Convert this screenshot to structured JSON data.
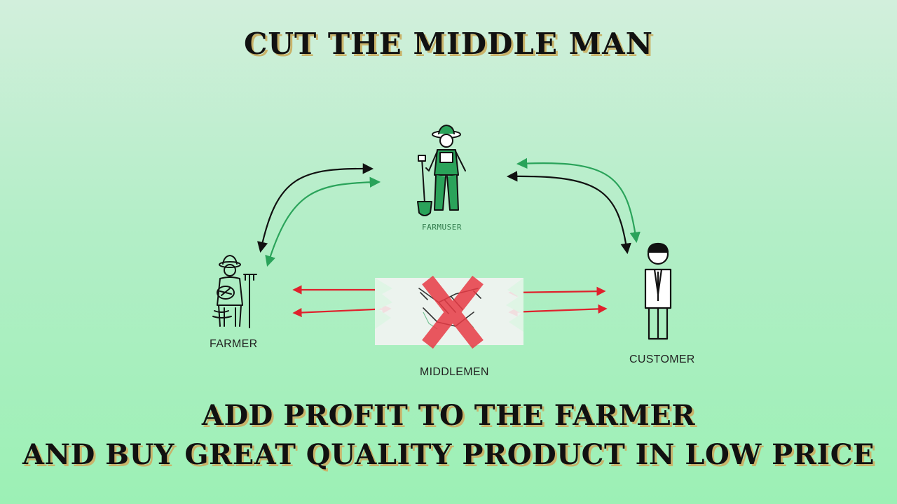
{
  "title": "CUT THE MIDDLE MAN",
  "nodes": {
    "farmuser": "FARMUSER",
    "farmer": "FARMER",
    "middlemen": "MIDDLEMEN",
    "customer": "CUSTOMER"
  },
  "footer": {
    "line1": "ADD PROFIT TO THE FARMER",
    "line2": "AND BUY GREAT QUALITY PRODUCT IN LOW PRICE"
  },
  "colors": {
    "direct_flow": "#111111",
    "return_flow": "#2aa35a",
    "middlemen_flow": "#e0202c",
    "cross": "#e83b45"
  },
  "icons": {
    "farmuser": "farmer-with-shovel-icon",
    "farmer": "farmer-with-rake-icon",
    "middlemen": "handshake-icon",
    "customer": "person-in-suit-icon"
  }
}
